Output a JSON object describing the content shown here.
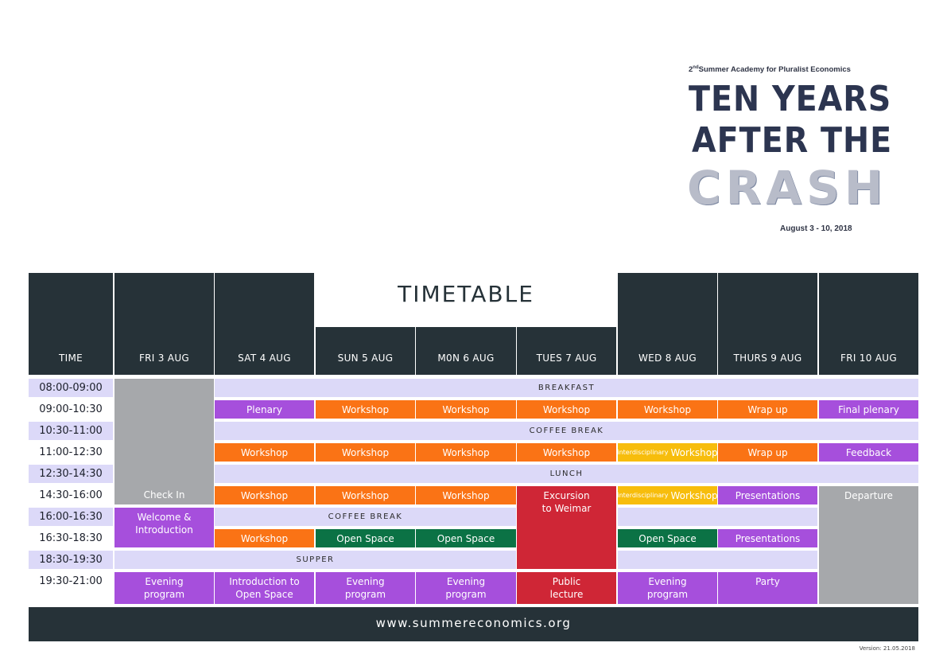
{
  "header": {
    "edition": "2",
    "edition_sup": "nd",
    "academy": "Summer Academy for Pluralist Economics",
    "title_line1": "TEN YEARS",
    "title_line2": "AFTER THE",
    "title_line3": "CRASH",
    "dates": "August 3 - 10, 2018"
  },
  "timetable_title": "TIMETABLE",
  "columns": [
    "TIME",
    "FRI 3 AUG",
    "SAT 4 AUG",
    "SUN 5 AUG",
    "M0N 6 AUG",
    "TUES 7 AUG",
    "WED 8 AUG",
    "THURS 9 AUG",
    "FRI 10 AUG"
  ],
  "times": [
    "08:00-09:00",
    "09:00-10:30",
    "10:30-11:00",
    "11:00-12:30",
    "12:30-14:30",
    "14:30-16:00",
    "16:00-16:30",
    "16:30-18:30",
    "18:30-19:30",
    "19:30-21:00"
  ],
  "bands": {
    "breakfast": "BREAKFAST",
    "coffee": "COFFEE BREAK",
    "lunch": "LUNCH",
    "supper": "SUPPER"
  },
  "events": {
    "check_in": "Check In",
    "welcome": "Welcome & Introduction",
    "plenary": "Plenary",
    "workshop": "Workshop",
    "wrap_up": "Wrap up",
    "final_plenary": "Final plenary",
    "interdisciplinary": "interdisciplinary",
    "feedback": "Feedback",
    "excursion": "Excursion to Weimar",
    "presentations": "Presentations",
    "departure": "Departure",
    "open_space": "Open Space",
    "evening_program": "Evening program",
    "intro_open_space": "Introduction to Open Space",
    "public_lecture": "Public lecture",
    "party": "Party"
  },
  "footer": {
    "url": "www.summereconomics.org",
    "version": "Version: 21.05.2018"
  },
  "colors": {
    "dark": "#263238",
    "band": "#dcd9f8",
    "purple": "#a64fdc",
    "orange": "#fa7315",
    "green": "#0b7245",
    "red": "#cf2636",
    "yellow": "#f7bd0c",
    "gray": "#a6a8ab"
  }
}
